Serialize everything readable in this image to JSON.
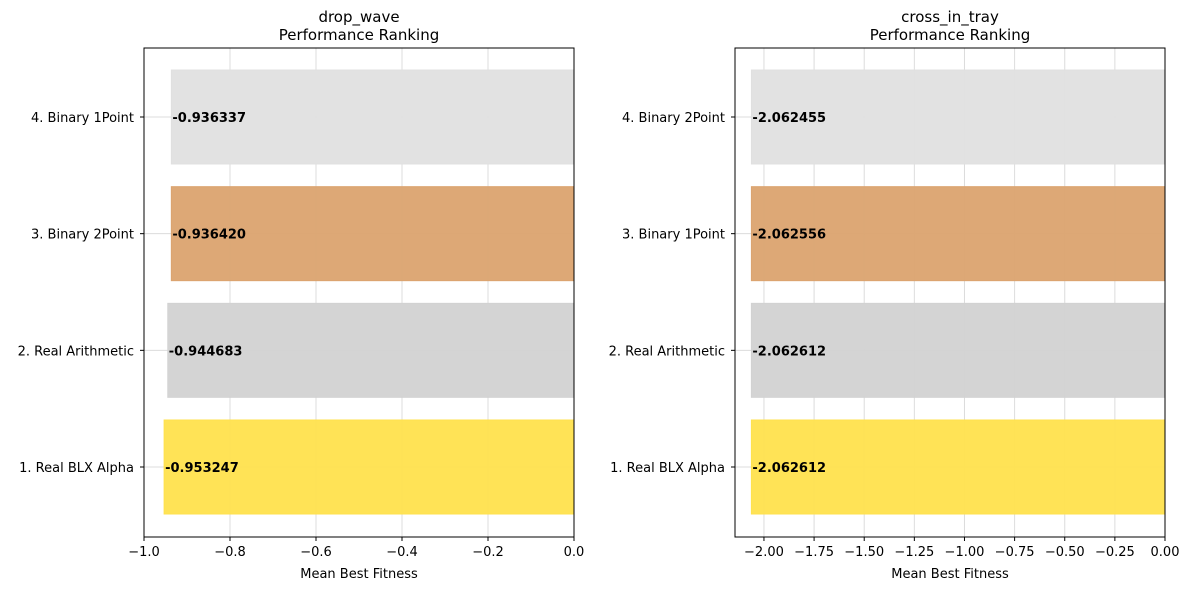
{
  "chart_data": [
    {
      "type": "bar",
      "orientation": "horizontal",
      "title": "drop_wave\nPerformance Ranking",
      "xlabel": "Mean Best Fitness",
      "xlim": [
        -1.0,
        0.0
      ],
      "xticks": [
        -1.0,
        -0.8,
        -0.6,
        -0.4,
        -0.2,
        0.0
      ],
      "xtick_labels": [
        "−1.0",
        "−0.8",
        "−0.6",
        "−0.4",
        "−0.2",
        "0.0"
      ],
      "grid": true,
      "categories": [
        "1. Real BLX Alpha",
        "2. Real Arithmetic",
        "3. Binary 2Point",
        "4. Binary 1Point"
      ],
      "values": [
        -0.953247,
        -0.944683,
        -0.93642,
        -0.936337
      ],
      "value_labels": [
        "-0.953247",
        "-0.944683",
        "-0.936420",
        "-0.936337"
      ],
      "colors": [
        "#ffe14d",
        "#d2d2d2",
        "#dba36f",
        "#e0e0e0"
      ]
    },
    {
      "type": "bar",
      "orientation": "horizontal",
      "title": "cross_in_tray\nPerformance Ranking",
      "xlabel": "Mean Best Fitness",
      "xlim": [
        -2.1444,
        0.0
      ],
      "xticks": [
        -2.0,
        -1.75,
        -1.5,
        -1.25,
        -1.0,
        -0.75,
        -0.5,
        -0.25,
        0.0
      ],
      "xtick_labels": [
        "−2.00",
        "−1.75",
        "−1.50",
        "−1.25",
        "−1.00",
        "−0.75",
        "−0.50",
        "−0.25",
        "0.00"
      ],
      "grid": true,
      "categories": [
        "1. Real BLX Alpha",
        "2. Real Arithmetic",
        "3. Binary 1Point",
        "4. Binary 2Point"
      ],
      "values": [
        -2.062612,
        -2.062612,
        -2.062556,
        -2.062455
      ],
      "value_labels": [
        "-2.062612",
        "-2.062612",
        "-2.062556",
        "-2.062455"
      ],
      "colors": [
        "#ffe14d",
        "#d2d2d2",
        "#dba36f",
        "#e0e0e0"
      ]
    }
  ]
}
